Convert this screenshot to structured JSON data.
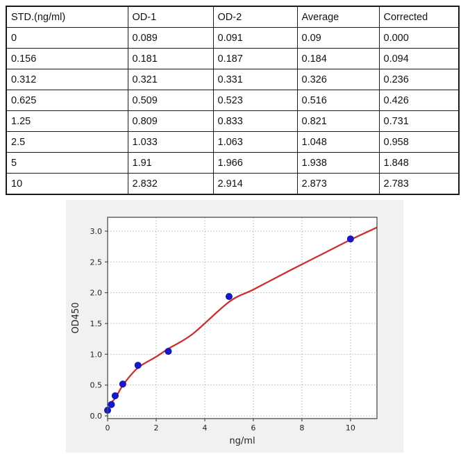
{
  "table": {
    "headers": [
      "STD.(ng/ml)",
      "OD-1",
      "OD-2",
      "Average",
      "Corrected"
    ],
    "rows": [
      [
        "0",
        "0.089",
        "0.091",
        "0.09",
        "0.000"
      ],
      [
        "0.156",
        "0.181",
        "0.187",
        "0.184",
        "0.094"
      ],
      [
        "0.312",
        "0.321",
        "0.331",
        "0.326",
        "0.236"
      ],
      [
        "0.625",
        "0.509",
        "0.523",
        "0.516",
        "0.426"
      ],
      [
        "1.25",
        "0.809",
        "0.833",
        "0.821",
        "0.731"
      ],
      [
        "2.5",
        "1.033",
        "1.063",
        "1.048",
        "0.958"
      ],
      [
        "5",
        "1.91",
        "1.966",
        "1.938",
        "1.848"
      ],
      [
        "10",
        "2.832",
        "2.914",
        "2.873",
        "2.783"
      ]
    ]
  },
  "chart_data": {
    "type": "scatter",
    "title": "",
    "xlabel": "ng/ml",
    "ylabel": "OD450",
    "xlim": [
      0,
      11.09
    ],
    "ylim": [
      -0.045,
      3.225
    ],
    "grid": true,
    "x_ticks": [
      0,
      2,
      4,
      6,
      8,
      10
    ],
    "x_tick_labels": [
      "0",
      "2",
      "4",
      "6",
      "8",
      "10"
    ],
    "y_ticks": [
      0.0,
      0.5,
      1.0,
      1.5,
      2.0,
      2.5,
      3.0
    ],
    "y_tick_labels": [
      "0.0",
      "0.5",
      "1.0",
      "1.5",
      "2.0",
      "2.5",
      "3.0"
    ],
    "series": [
      {
        "name": "standard-points",
        "type": "scatter",
        "x": [
          0,
          0.156,
          0.312,
          0.625,
          1.25,
          2.5,
          5,
          10
        ],
        "y": [
          0.09,
          0.184,
          0.326,
          0.516,
          0.821,
          1.048,
          1.938,
          2.873
        ],
        "color": "#1717cd",
        "edge_color": "#0d0d8f"
      },
      {
        "name": "fitted-curve",
        "type": "line",
        "x": [
          0,
          0.3,
          0.65,
          1.25,
          2.0,
          2.5,
          3.5,
          5,
          6,
          7.5,
          9,
          10,
          11.09
        ],
        "y": [
          0.17,
          0.28,
          0.51,
          0.78,
          0.96,
          1.09,
          1.33,
          1.85,
          2.05,
          2.36,
          2.66,
          2.86,
          3.06
        ],
        "color": "#cc2f2f"
      }
    ],
    "colors": {
      "figure_bg": "#f1f1f1",
      "plot_bg": "#ffffff",
      "grid": "#c8c8c8",
      "spine": "#4d4d4d",
      "tick_text": "#222222"
    }
  }
}
